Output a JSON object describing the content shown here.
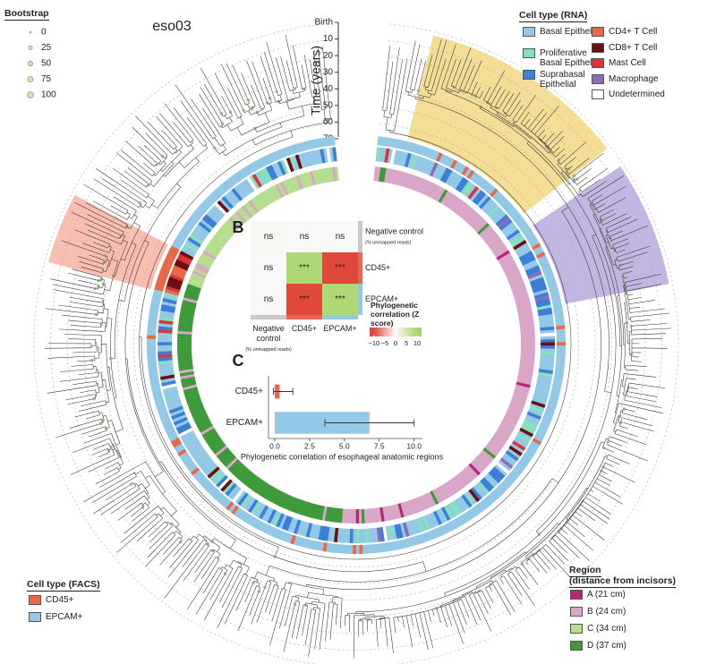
{
  "sample": "eso03",
  "bootstrap_legend": {
    "title": "Bootstrap",
    "values": [
      0,
      25,
      50,
      75,
      100
    ]
  },
  "time_axis": {
    "label": "Time (years)",
    "ticks": [
      {
        "value": 0,
        "label": "Birth"
      },
      10,
      20,
      30,
      40,
      50,
      60,
      70
    ]
  },
  "rna_legend": {
    "title": "Cell type (RNA)",
    "items": [
      {
        "name": "Basal Epithelial",
        "color": "#93c9e6"
      },
      {
        "name": "Proliferative Basal Epithelial",
        "color": "#86e0c0"
      },
      {
        "name": "Suprabasal Epithelial",
        "color": "#3b7fd9"
      },
      {
        "name": "CD4+ T Cell",
        "color": "#e8694a"
      },
      {
        "name": "CD8+ T Cell",
        "color": "#6b0f0f"
      },
      {
        "name": "Mast Cell",
        "color": "#d9343a"
      },
      {
        "name": "Macrophage",
        "color": "#8e6bb8"
      },
      {
        "name": "Undetermined",
        "color": "#ffffff"
      }
    ]
  },
  "facs_legend": {
    "title": "Cell type (FACS)",
    "items": [
      {
        "name": "CD45+",
        "color": "#e8694a"
      },
      {
        "name": "EPCAM+",
        "color": "#93c9e6"
      }
    ]
  },
  "region_legend": {
    "title": "Region",
    "subtitle": "(distance from incisors)",
    "items": [
      {
        "name": "A (21 cm)",
        "color": "#b5267a"
      },
      {
        "name": "B (24 cm)",
        "color": "#d9a6c8"
      },
      {
        "name": "C (34 cm)",
        "color": "#b5df8e"
      },
      {
        "name": "D (37 cm)",
        "color": "#3f9a3a"
      }
    ]
  },
  "chart_data": [
    {
      "type": "heatmap",
      "panel": "B",
      "rows": [
        "Negative control",
        "CD45+",
        "EPCAM+"
      ],
      "columns": [
        "Negative control",
        "CD45+",
        "EPCAM+"
      ],
      "control_note": "(% unmapped reads)",
      "values": [
        [
          0.4,
          0.3,
          0.3
        ],
        [
          0.3,
          9.2,
          -10.5
        ],
        [
          0.3,
          -10.2,
          9.0
        ]
      ],
      "significance": [
        [
          "ns",
          "ns",
          "ns"
        ],
        [
          "ns",
          "***",
          "***"
        ],
        [
          "ns",
          "***",
          "***"
        ]
      ],
      "colorbar_title": "Phylogenetic correlation (Z score)",
      "colorbar_lim": [
        -12,
        12
      ],
      "colorbar_ticks": [
        {
          "value": -10,
          "label": "−10"
        },
        {
          "value": -5,
          "label": "−5"
        },
        0,
        5,
        10
      ]
    },
    {
      "type": "bar",
      "panel": "C",
      "categories": [
        "CD45+",
        "EPCAM+"
      ],
      "values": [
        0.35,
        6.8
      ],
      "error_low": [
        -0.1,
        3.6
      ],
      "error_high": [
        1.3,
        10.0
      ],
      "colors": [
        "#e8694a",
        "#93c9e6"
      ],
      "xlim": [
        -0.45,
        10.6
      ],
      "xticks": [
        {
          "value": 0,
          "label": "0.0"
        },
        {
          "value": 2.5,
          "label": "2.5"
        },
        {
          "value": 5,
          "label": "5.0"
        },
        {
          "value": 7.5,
          "label": "7.5"
        },
        {
          "value": 10,
          "label": "10.0"
        }
      ],
      "xlabel": "Phylogenetic correlation of esophageal anatomic regions"
    }
  ]
}
